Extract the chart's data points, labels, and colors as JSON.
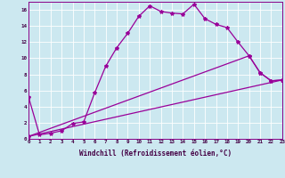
{
  "title": "",
  "xlabel": "Windchill (Refroidissement éolien,°C)",
  "bg_color": "#cce8f0",
  "line_color": "#990099",
  "xlim": [
    0,
    23
  ],
  "ylim": [
    0,
    17
  ],
  "xticks": [
    0,
    1,
    2,
    3,
    4,
    5,
    6,
    7,
    8,
    9,
    10,
    11,
    12,
    13,
    14,
    15,
    16,
    17,
    18,
    19,
    20,
    21,
    22,
    23
  ],
  "yticks": [
    0,
    2,
    4,
    6,
    8,
    10,
    12,
    14,
    16
  ],
  "line1_x": [
    0,
    1,
    2,
    3,
    4,
    5,
    6,
    7,
    8,
    9,
    10,
    11,
    12,
    13,
    14,
    15,
    16,
    17,
    18,
    19,
    20,
    21,
    22,
    23
  ],
  "line1_y": [
    5.2,
    0.5,
    0.7,
    1.0,
    1.9,
    2.1,
    5.7,
    9.0,
    11.3,
    13.1,
    15.2,
    16.5,
    15.8,
    15.6,
    15.5,
    16.7,
    14.9,
    14.2,
    13.8,
    12.0,
    10.3,
    8.2,
    7.2,
    7.3
  ],
  "line2_x": [
    0,
    20,
    21,
    22,
    23
  ],
  "line2_y": [
    0.3,
    10.3,
    8.2,
    7.2,
    7.3
  ],
  "line3_x": [
    0,
    23
  ],
  "line3_y": [
    0.3,
    7.3
  ],
  "marker": "*",
  "markersize": 3,
  "linewidth": 0.9,
  "grid_color": "white",
  "grid_lw": 0.6,
  "tick_fontsize": 4.2,
  "xlabel_fontsize": 5.5
}
